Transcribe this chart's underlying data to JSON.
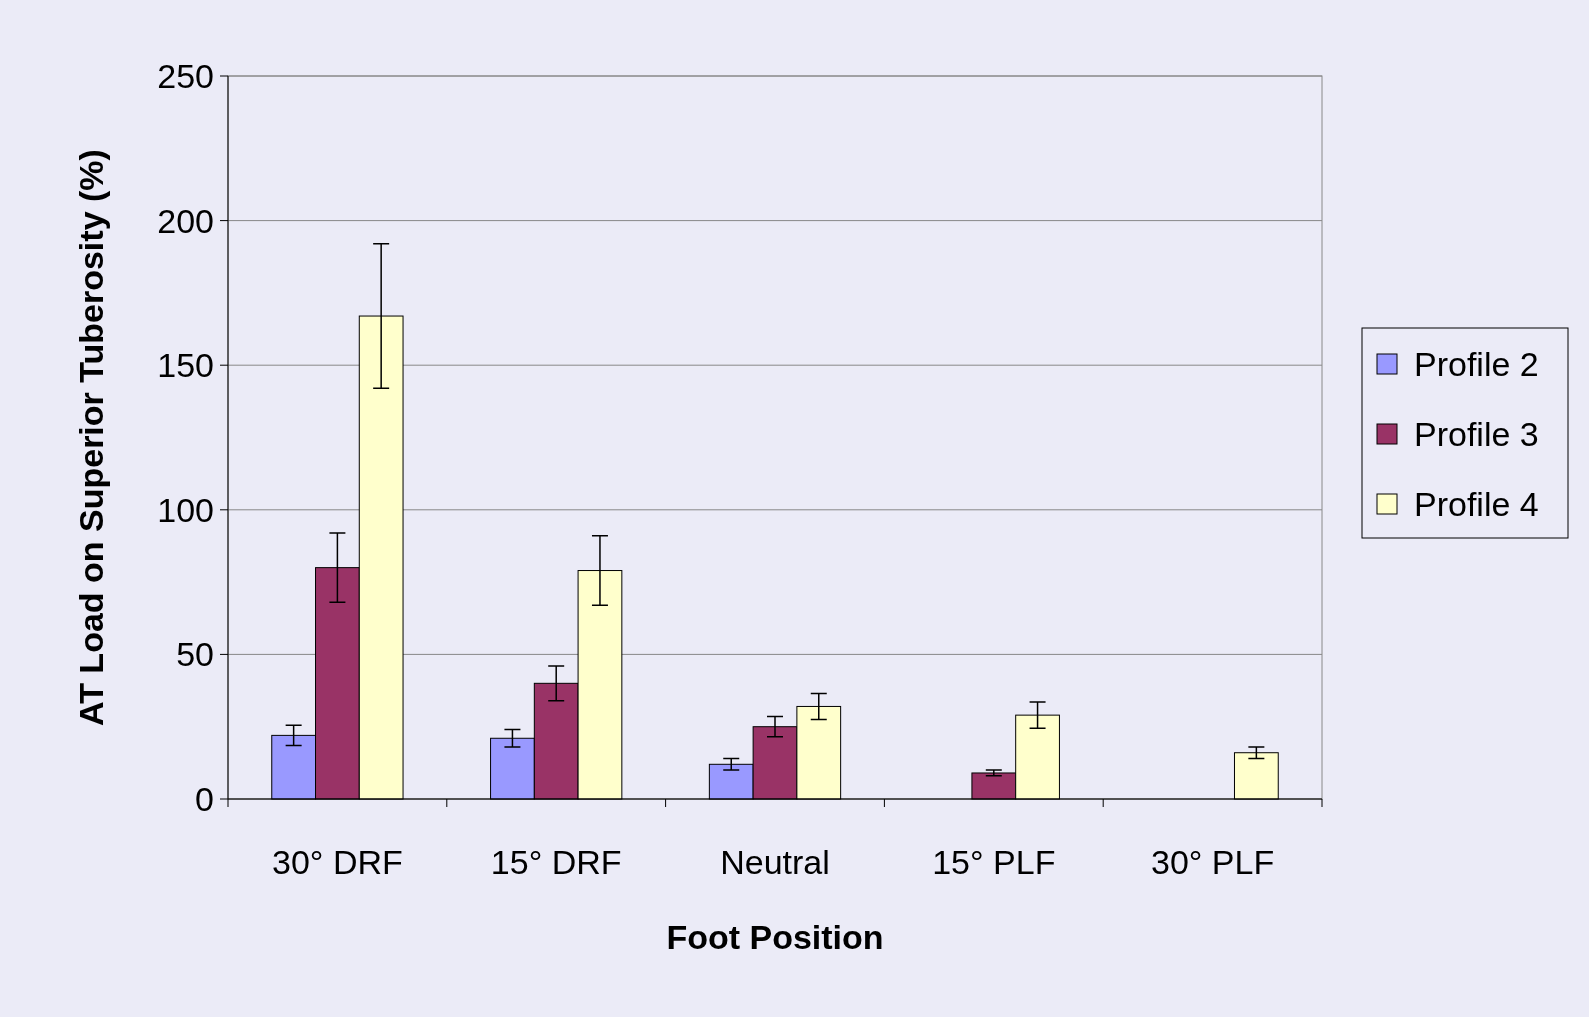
{
  "chart_data": {
    "type": "bar",
    "xlabel": "Foot Position",
    "ylabel": "AT Load on Superior Tuberosity (%)",
    "categories": [
      "30° DRF",
      "15° DRF",
      "Neutral",
      "15° PLF",
      "30° PLF"
    ],
    "series": [
      {
        "name": "Profile 2",
        "color": "#9999ff",
        "values": [
          22,
          21,
          12,
          0,
          0
        ],
        "errors": [
          3.5,
          3,
          2,
          null,
          null
        ]
      },
      {
        "name": "Profile 3",
        "color": "#993366",
        "values": [
          80,
          40,
          25,
          9,
          0
        ],
        "errors": [
          12,
          6,
          3.5,
          1,
          null
        ]
      },
      {
        "name": "Profile 4",
        "color": "#ffffcc",
        "values": [
          167,
          79,
          32,
          29,
          16
        ],
        "errors": [
          25,
          12,
          4.5,
          4.5,
          2
        ]
      }
    ],
    "ylim": [
      0,
      250
    ],
    "yticks": [
      0,
      50,
      100,
      150,
      200,
      250
    ],
    "grid": "y",
    "legend": "right"
  }
}
